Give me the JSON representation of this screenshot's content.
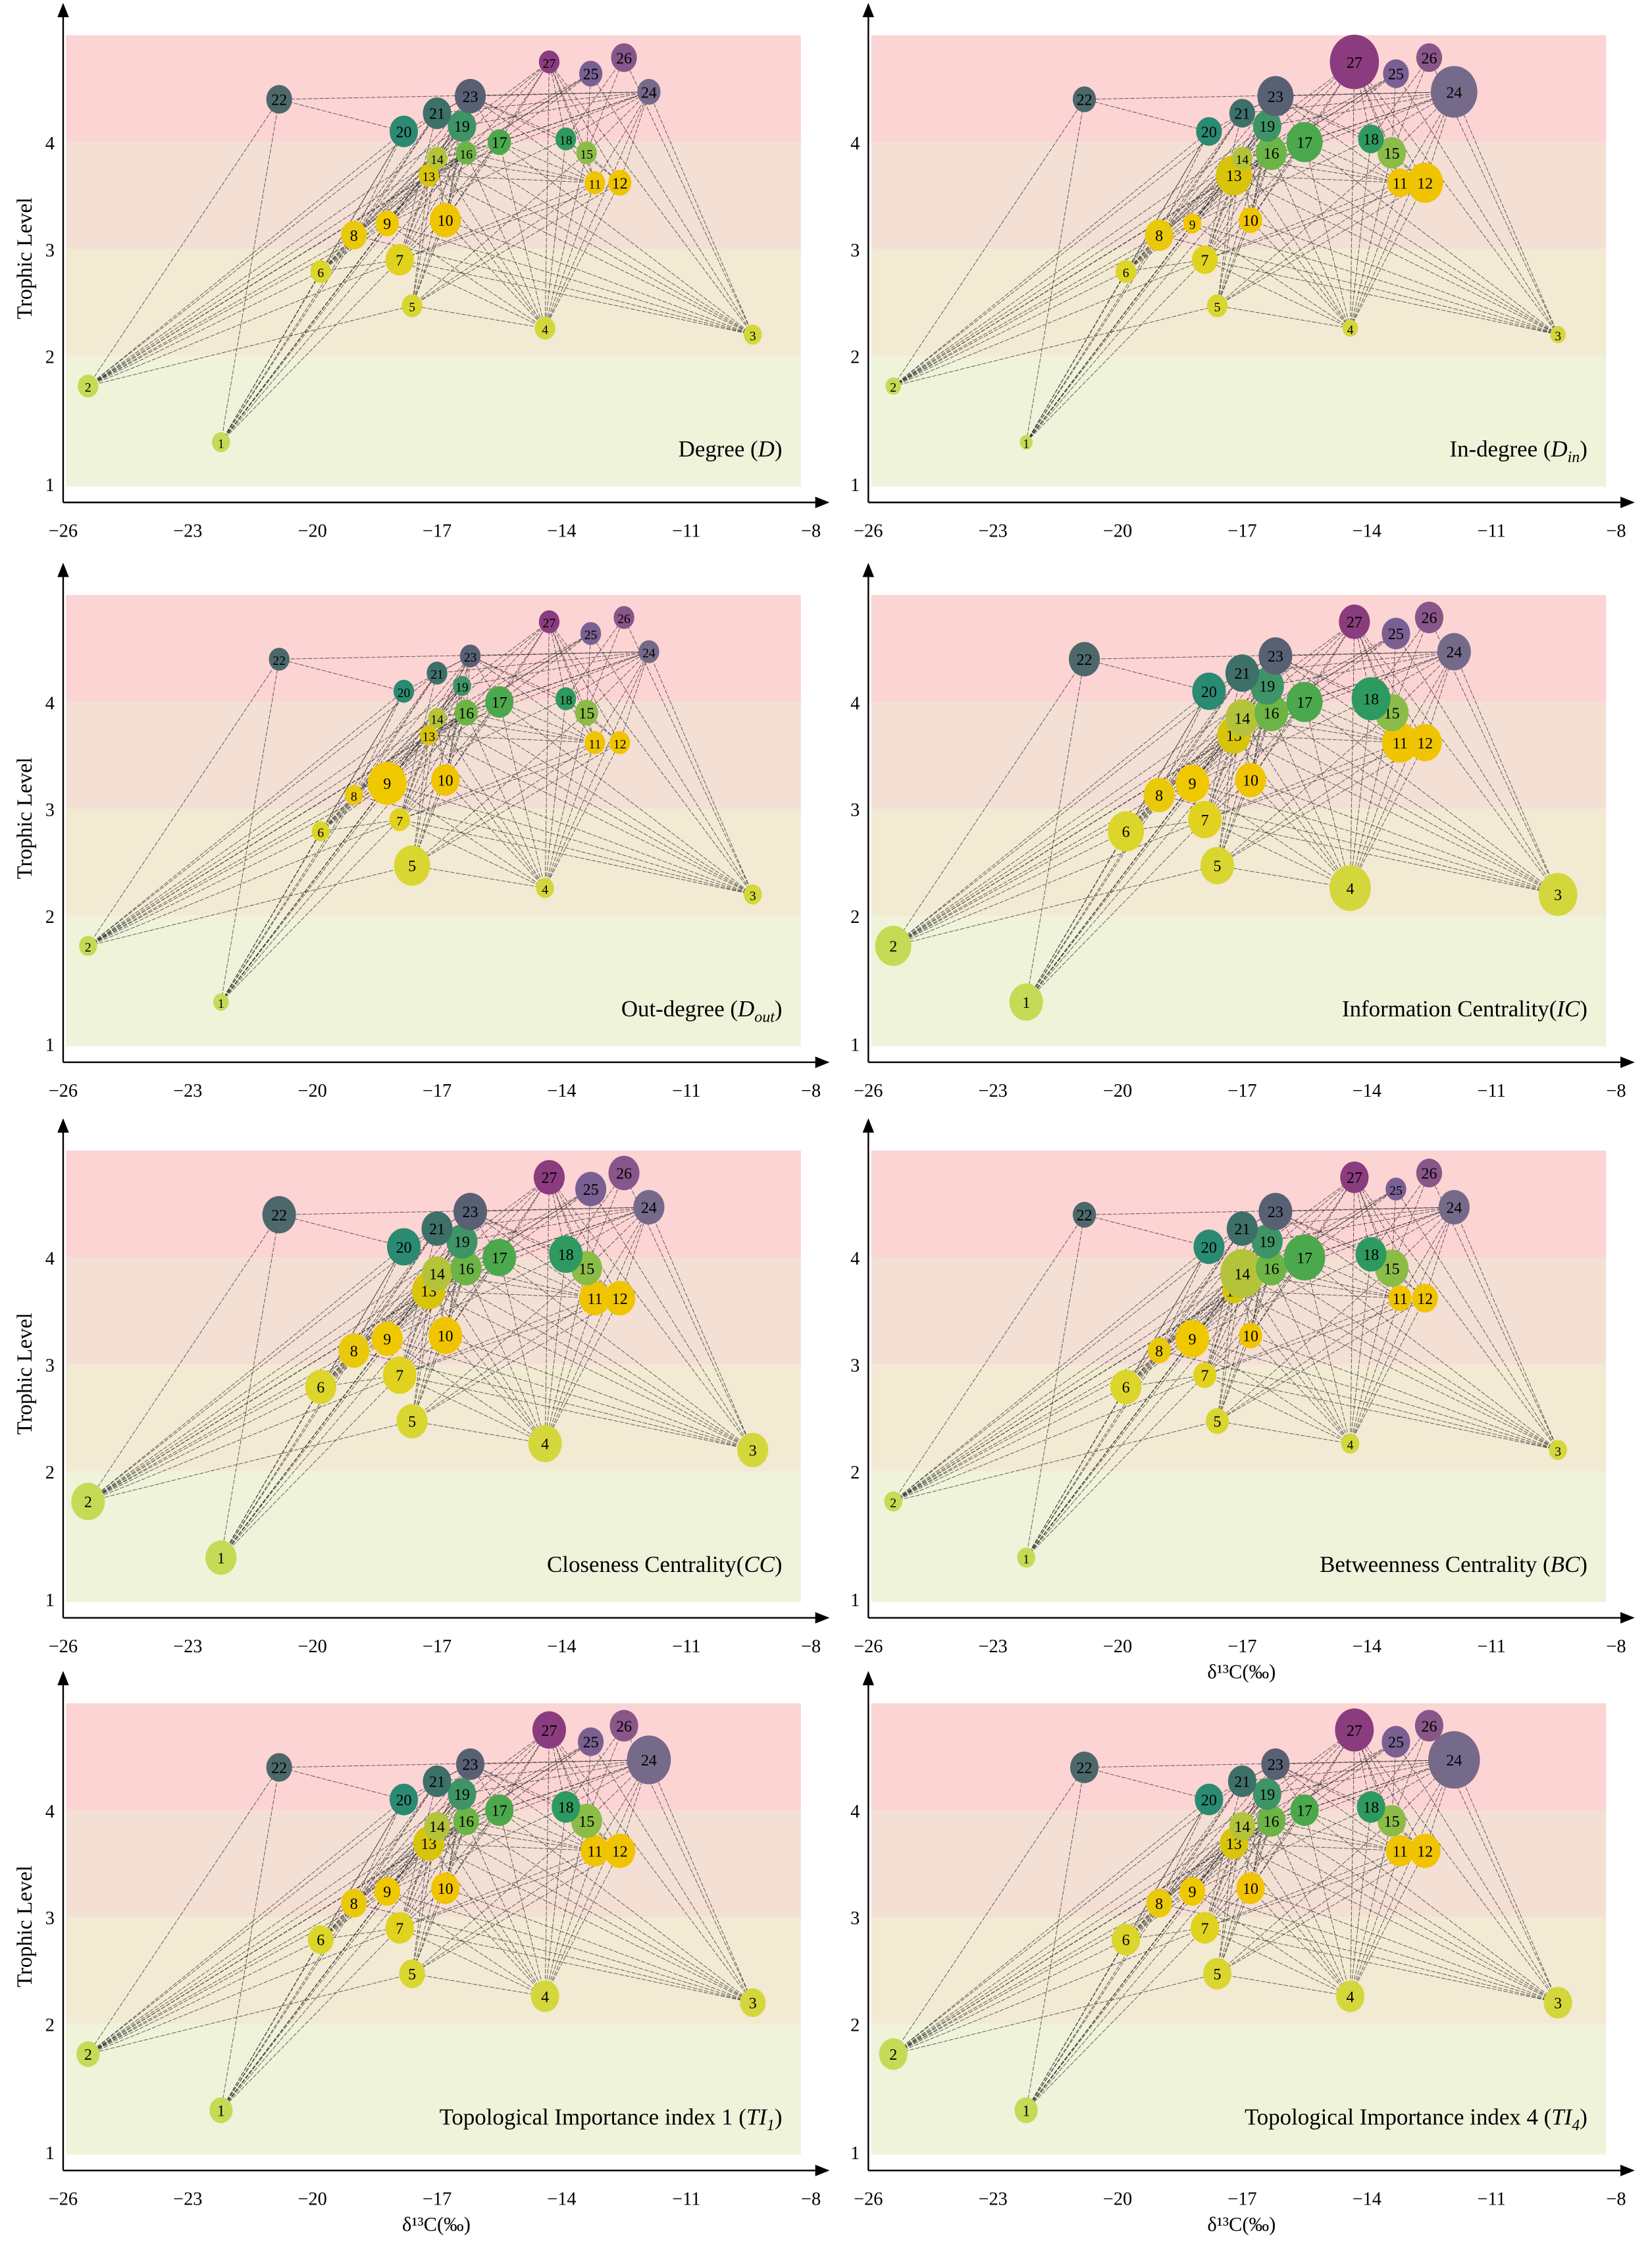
{
  "chart_data": {
    "type": "scatter",
    "description_labels": {
      "ylabel": "Trophic Level",
      "xlabel": "δ¹³C(‰)"
    },
    "x_ticks": [
      "−26",
      "−23",
      "−20",
      "−17",
      "−14",
      "−11",
      "−8"
    ],
    "x_tick_values": [
      -26,
      -23,
      -20,
      -17,
      -14,
      -11,
      -8
    ],
    "y_ticks": [
      "1",
      "2",
      "3",
      "4"
    ],
    "y_tick_values": [
      1,
      2,
      3,
      4
    ],
    "xlim": [
      -26,
      -8
    ],
    "ylim": [
      1,
      5
    ],
    "bands": [
      {
        "from": 4,
        "to": 5,
        "color": "#fcd4d4"
      },
      {
        "from": 3,
        "to": 4,
        "color": "#f4dfd4"
      },
      {
        "from": 2,
        "to": 3,
        "color": "#f2ead3"
      },
      {
        "from": 1,
        "to": 2,
        "color": "#eff3da"
      }
    ],
    "nodes": [
      {
        "id": "1",
        "d13C": -22.2,
        "TL": 1.34,
        "color": "#c4db55"
      },
      {
        "id": "2",
        "d13C": -25.4,
        "TL": 1.77,
        "color": "#c4db55"
      },
      {
        "id": "3",
        "d13C": -9.4,
        "TL": 2.2,
        "color": "#d4d73c"
      },
      {
        "id": "4",
        "d13C": -14.4,
        "TL": 2.26,
        "color": "#d4d73c"
      },
      {
        "id": "5",
        "d13C": -17.6,
        "TL": 2.47,
        "color": "#d9d632"
      },
      {
        "id": "6",
        "d13C": -19.8,
        "TL": 2.79,
        "color": "#dcd52a"
      },
      {
        "id": "7",
        "d13C": -17.9,
        "TL": 2.9,
        "color": "#e0d21e"
      },
      {
        "id": "8",
        "d13C": -19.0,
        "TL": 3.13,
        "color": "#eac80c"
      },
      {
        "id": "9",
        "d13C": -18.2,
        "TL": 3.24,
        "color": "#f0c800"
      },
      {
        "id": "10",
        "d13C": -16.8,
        "TL": 3.27,
        "color": "#f0c400"
      },
      {
        "id": "11",
        "d13C": -13.2,
        "TL": 3.62,
        "color": "#f0c400"
      },
      {
        "id": "12",
        "d13C": -12.6,
        "TL": 3.62,
        "color": "#f0c400"
      },
      {
        "id": "13",
        "d13C": -17.2,
        "TL": 3.69,
        "color": "#d8c40a"
      },
      {
        "id": "14",
        "d13C": -17.0,
        "TL": 3.85,
        "color": "#b4c43a"
      },
      {
        "id": "15",
        "d13C": -13.4,
        "TL": 3.9,
        "color": "#8cbc48"
      },
      {
        "id": "16",
        "d13C": -16.3,
        "TL": 3.9,
        "color": "#6cb446"
      },
      {
        "id": "17",
        "d13C": -15.5,
        "TL": 4.0,
        "color": "#4ca84c"
      },
      {
        "id": "18",
        "d13C": -13.9,
        "TL": 4.03,
        "color": "#2e9a60"
      },
      {
        "id": "19",
        "d13C": -16.4,
        "TL": 4.15,
        "color": "#3e9466"
      },
      {
        "id": "20",
        "d13C": -17.8,
        "TL": 4.1,
        "color": "#2a8a72"
      },
      {
        "id": "21",
        "d13C": -17.0,
        "TL": 4.27,
        "color": "#3e706a"
      },
      {
        "id": "22",
        "d13C": -20.8,
        "TL": 4.4,
        "color": "#4c686a"
      },
      {
        "id": "23",
        "d13C": -16.2,
        "TL": 4.43,
        "color": "#586074"
      },
      {
        "id": "24",
        "d13C": -11.9,
        "TL": 4.47,
        "color": "#766a8a"
      },
      {
        "id": "25",
        "d13C": -13.3,
        "TL": 4.64,
        "color": "#7a6092"
      },
      {
        "id": "26",
        "d13C": -12.5,
        "TL": 4.79,
        "color": "#885688"
      },
      {
        "id": "27",
        "d13C": -14.3,
        "TL": 4.75,
        "color": "#8a3c7e"
      }
    ],
    "edges": [
      [
        1,
        6
      ],
      [
        1,
        7
      ],
      [
        1,
        8
      ],
      [
        1,
        9
      ],
      [
        1,
        13
      ],
      [
        1,
        14
      ],
      [
        1,
        16
      ],
      [
        1,
        19
      ],
      [
        1,
        20
      ],
      [
        1,
        21
      ],
      [
        1,
        22
      ],
      [
        2,
        5
      ],
      [
        2,
        6
      ],
      [
        2,
        7
      ],
      [
        2,
        8
      ],
      [
        2,
        9
      ],
      [
        2,
        13
      ],
      [
        2,
        14
      ],
      [
        2,
        16
      ],
      [
        2,
        19
      ],
      [
        2,
        20
      ],
      [
        2,
        21
      ],
      [
        2,
        22
      ],
      [
        3,
        7
      ],
      [
        3,
        8
      ],
      [
        3,
        9
      ],
      [
        3,
        10
      ],
      [
        3,
        13
      ],
      [
        3,
        14
      ],
      [
        3,
        16
      ],
      [
        3,
        17
      ],
      [
        3,
        24
      ],
      [
        3,
        25
      ],
      [
        3,
        26
      ],
      [
        3,
        27
      ],
      [
        4,
        5
      ],
      [
        4,
        7
      ],
      [
        4,
        9
      ],
      [
        4,
        10
      ],
      [
        4,
        11
      ],
      [
        4,
        12
      ],
      [
        4,
        13
      ],
      [
        4,
        14
      ],
      [
        4,
        15
      ],
      [
        4,
        16
      ],
      [
        4,
        17
      ],
      [
        4,
        18
      ],
      [
        4,
        24
      ],
      [
        4,
        27
      ],
      [
        5,
        10
      ],
      [
        5,
        11
      ],
      [
        5,
        12
      ],
      [
        5,
        13
      ],
      [
        5,
        14
      ],
      [
        5,
        15
      ],
      [
        5,
        16
      ],
      [
        5,
        19
      ],
      [
        6,
        7
      ],
      [
        6,
        8
      ],
      [
        6,
        9
      ],
      [
        6,
        13
      ],
      [
        6,
        14
      ],
      [
        6,
        16
      ],
      [
        6,
        19
      ],
      [
        6,
        20
      ],
      [
        6,
        21
      ],
      [
        7,
        10
      ],
      [
        7,
        11
      ],
      [
        7,
        12
      ],
      [
        7,
        13
      ],
      [
        7,
        14
      ],
      [
        7,
        16
      ],
      [
        7,
        17
      ],
      [
        7,
        19
      ],
      [
        7,
        21
      ],
      [
        8,
        13
      ],
      [
        8,
        14
      ],
      [
        8,
        16
      ],
      [
        8,
        19
      ],
      [
        8,
        20
      ],
      [
        8,
        21
      ],
      [
        8,
        23
      ],
      [
        9,
        13
      ],
      [
        9,
        14
      ],
      [
        9,
        16
      ],
      [
        9,
        17
      ],
      [
        9,
        18
      ],
      [
        9,
        19
      ],
      [
        9,
        23
      ],
      [
        10,
        14
      ],
      [
        10,
        16
      ],
      [
        10,
        17
      ],
      [
        10,
        19
      ],
      [
        10,
        23
      ],
      [
        10,
        27
      ],
      [
        11,
        13
      ],
      [
        11,
        14
      ],
      [
        11,
        15
      ],
      [
        11,
        16
      ],
      [
        11,
        17
      ],
      [
        11,
        18
      ],
      [
        11,
        23
      ],
      [
        11,
        24
      ],
      [
        11,
        27
      ],
      [
        12,
        15
      ],
      [
        12,
        18
      ],
      [
        12,
        24
      ],
      [
        12,
        27
      ],
      [
        13,
        14
      ],
      [
        13,
        16
      ],
      [
        13,
        17
      ],
      [
        13,
        19
      ],
      [
        13,
        23
      ],
      [
        13,
        24
      ],
      [
        13,
        25
      ],
      [
        14,
        16
      ],
      [
        14,
        17
      ],
      [
        14,
        19
      ],
      [
        14,
        23
      ],
      [
        14,
        25
      ],
      [
        14,
        27
      ],
      [
        15,
        23
      ],
      [
        15,
        24
      ],
      [
        15,
        25
      ],
      [
        15,
        26
      ],
      [
        15,
        27
      ],
      [
        16,
        19
      ],
      [
        16,
        23
      ],
      [
        16,
        24
      ],
      [
        16,
        25
      ],
      [
        16,
        27
      ],
      [
        17,
        23
      ],
      [
        17,
        24
      ],
      [
        17,
        25
      ],
      [
        17,
        27
      ],
      [
        18,
        23
      ],
      [
        18,
        24
      ],
      [
        18,
        26
      ],
      [
        18,
        27
      ],
      [
        19,
        23
      ],
      [
        19,
        24
      ],
      [
        19,
        27
      ],
      [
        20,
        22
      ],
      [
        20,
        23
      ],
      [
        21,
        23
      ],
      [
        21,
        24
      ],
      [
        22,
        24
      ],
      [
        23,
        24
      ]
    ],
    "panels": [
      {
        "title_pre": "Degree (",
        "symbol": "D",
        "sub": "",
        "title_post": ")",
        "show_xlabel": false,
        "show_ylabel": true,
        "relative_value": [
          7,
          8,
          7,
          8,
          8,
          8,
          11,
          10,
          9,
          12,
          8,
          9,
          8,
          8,
          8,
          8,
          9,
          8,
          11,
          11,
          11,
          10,
          12,
          9,
          9,
          10,
          8
        ]
      },
      {
        "title_pre": "In-degree (",
        "symbol": "D",
        "sub": "in",
        "title_post": ")",
        "show_xlabel": false,
        "show_ylabel": false,
        "relative_value": [
          5,
          6,
          6,
          6,
          8,
          8,
          10,
          11,
          7,
          9,
          10,
          14,
          14,
          8,
          11,
          12,
          14,
          10,
          11,
          10,
          10,
          9,
          14,
          18,
          10,
          10,
          19
        ]
      },
      {
        "title_pre": "Out-degree (",
        "symbol": "D",
        "sub": "out",
        "title_post": ")",
        "show_xlabel": false,
        "show_ylabel": true,
        "relative_value": [
          6,
          7,
          7,
          7,
          14,
          7,
          8,
          7,
          15,
          11,
          8,
          8,
          7,
          7,
          9,
          9,
          11,
          8,
          7,
          8,
          8,
          8,
          8,
          8,
          8,
          8,
          8
        ]
      },
      {
        "title_pre": "Information Centrality(",
        "symbol": "IC",
        "sub": "",
        "title_post": ")",
        "show_xlabel": false,
        "show_ylabel": false,
        "relative_value": [
          13,
          14,
          15,
          16,
          13,
          14,
          13,
          12,
          13,
          12,
          14,
          13,
          13,
          13,
          13,
          13,
          14,
          15,
          13,
          13,
          13,
          12,
          13,
          13,
          11,
          11,
          12
        ]
      },
      {
        "title_pre": "Closeness Centrality(",
        "symbol": "CC",
        "sub": "",
        "title_post": ")",
        "show_xlabel": false,
        "show_ylabel": true,
        "relative_value": [
          12,
          13,
          12,
          13,
          12,
          12,
          13,
          12,
          12,
          13,
          12,
          12,
          13,
          12,
          12,
          12,
          13,
          13,
          12,
          13,
          12,
          13,
          13,
          12,
          12,
          12,
          12
        ]
      },
      {
        "title_pre": "Betweenness Centrality (",
        "symbol": "BC",
        "sub": "",
        "title_post": ")",
        "show_xlabel": true,
        "show_ylabel": false,
        "relative_value": [
          7,
          7,
          7,
          7,
          9,
          12,
          9,
          9,
          13,
          9,
          9,
          10,
          9,
          17,
          13,
          12,
          16,
          12,
          12,
          12,
          12,
          9,
          13,
          12,
          8,
          10,
          11
        ]
      },
      {
        "title_pre": "Topological Importance index 1 (",
        "symbol": "TI",
        "sub": "1",
        "title_post": ")",
        "show_xlabel": true,
        "show_ylabel": true,
        "relative_value": [
          9,
          9,
          10,
          11,
          10,
          10,
          11,
          10,
          10,
          11,
          11,
          12,
          12,
          10,
          12,
          10,
          11,
          11,
          11,
          11,
          11,
          10,
          11,
          17,
          10,
          11,
          13
        ]
      },
      {
        "title_pre": "Topological Importance index 4 (",
        "symbol": "TI",
        "sub": "4",
        "title_post": ")",
        "show_xlabel": true,
        "show_ylabel": false,
        "relative_value": [
          9,
          11,
          11,
          11,
          11,
          11,
          11,
          10,
          10,
          11,
          11,
          12,
          11,
          10,
          11,
          11,
          11,
          11,
          11,
          11,
          11,
          11,
          11,
          20,
          11,
          11,
          15
        ]
      }
    ]
  }
}
